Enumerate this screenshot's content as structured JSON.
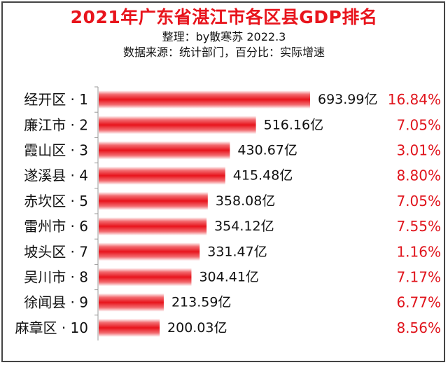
{
  "title": "2021年广东省湛江市各区县GDP排名",
  "subtitle": "整理：by散寒苏 2022.3",
  "source_note": "数据来源：统计部门，百分比：实际增速",
  "colors": {
    "bar": "#e8141c",
    "title": "#e8141c",
    "growth": "#e0141c"
  },
  "chart_data": {
    "type": "bar",
    "orientation": "horizontal",
    "categories": [
      "经开区 · 1",
      "廉江市 · 2",
      "霞山区 · 3",
      "遂溪县 · 4",
      "赤坎区 · 5",
      "雷州市 · 6",
      "坡头区 · 7",
      "吴川市 · 8",
      "徐闻县 · 9",
      "麻章区 · 10"
    ],
    "values": [
      693.99,
      516.16,
      430.67,
      415.48,
      358.08,
      354.12,
      331.47,
      304.41,
      213.59,
      200.03
    ],
    "value_labels": [
      "693.99亿",
      "516.16亿",
      "430.67亿",
      "415.48亿",
      "358.08亿",
      "354.12亿",
      "331.47亿",
      "304.41亿",
      "213.59亿",
      "200.03亿"
    ],
    "growth_labels": [
      "16.84%",
      "7.05%",
      "3.01%",
      "8.80%",
      "7.05%",
      "7.55%",
      "1.16%",
      "7.17%",
      "6.77%",
      "8.56%"
    ],
    "growth_values": [
      16.84,
      7.05,
      3.01,
      8.8,
      7.05,
      7.55,
      1.16,
      7.17,
      6.77,
      8.56
    ],
    "xlim": [
      0,
      693.99
    ],
    "grid": false,
    "legend": "none"
  }
}
